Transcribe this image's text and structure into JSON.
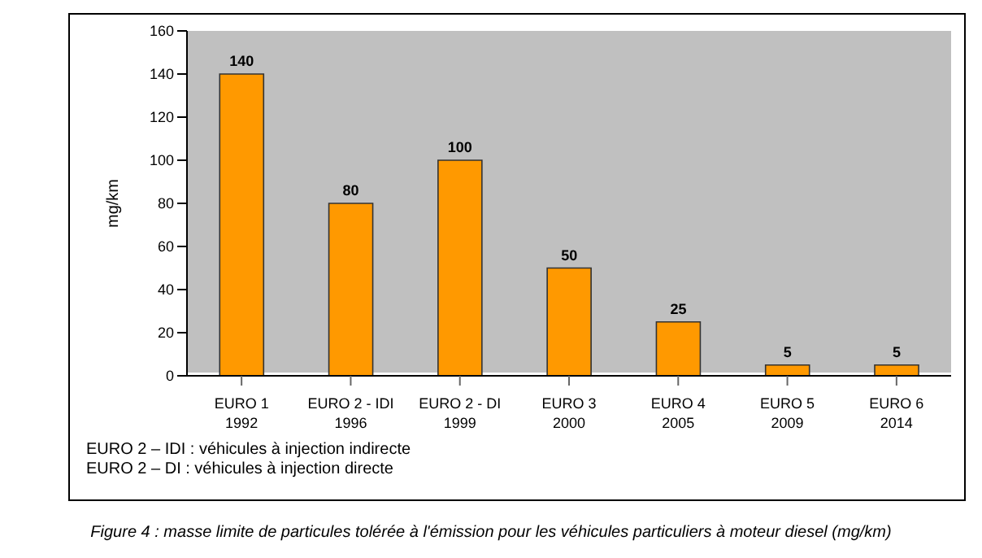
{
  "chart_data": {
    "type": "bar",
    "categories": [
      "EURO 1\n1992",
      "EURO 2 - IDI\n1996",
      "EURO 2 - DI\n1999",
      "EURO 3\n2000",
      "EURO 4\n2005",
      "EURO 5\n2009",
      "EURO 6\n2014"
    ],
    "values": [
      140,
      80,
      100,
      50,
      25,
      5,
      5
    ],
    "color": "#ff9900",
    "ylabel": "mg/km",
    "ylim": [
      0,
      160
    ],
    "yticks": [
      0,
      20,
      40,
      60,
      80,
      100,
      120,
      140,
      160
    ],
    "data_labels": true,
    "annotations": [
      "EURO 2 – IDI : véhicules à injection indirecte",
      "EURO 2 – DI : véhicules à injection directe",
      "Figure 4 : masse limite de particules tolérée à l'émission pour les véhicules particuliers à moteur diesel (mg/km)"
    ]
  }
}
